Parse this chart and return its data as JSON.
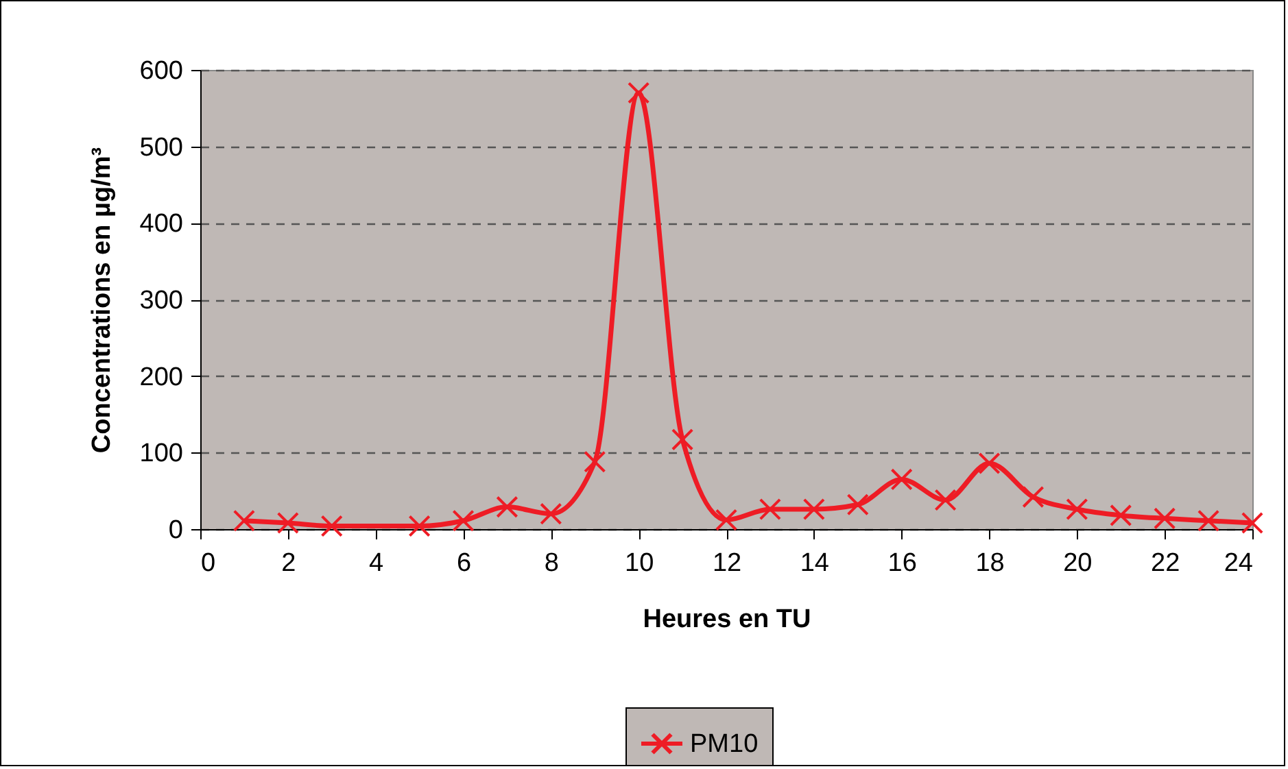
{
  "chart_data": {
    "type": "line",
    "xlabel": "Heures en TU",
    "ylabel": "Concentrations en µg/m³",
    "x": [
      1,
      2,
      3,
      5,
      6,
      7,
      8,
      9,
      10,
      11,
      12,
      13,
      14,
      15,
      16,
      17,
      18,
      19,
      20,
      21,
      22,
      23,
      24
    ],
    "series": [
      {
        "name": "PM10",
        "color": "#ee1c25",
        "values": [
          11,
          8,
          4,
          4,
          11,
          29,
          20,
          88,
          570,
          117,
          12,
          26,
          26,
          32,
          65,
          38,
          86,
          42,
          26,
          18,
          14,
          11,
          8
        ]
      }
    ],
    "xlim": [
      0,
      24
    ],
    "xticks": [
      0,
      2,
      4,
      6,
      8,
      10,
      12,
      14,
      16,
      18,
      20,
      22,
      24
    ],
    "ylim": [
      0,
      600
    ],
    "yticks": [
      0,
      100,
      200,
      300,
      400,
      500,
      600
    ],
    "grid": "y",
    "legend": "bottom",
    "marker": "cross",
    "line_style": "solid"
  }
}
